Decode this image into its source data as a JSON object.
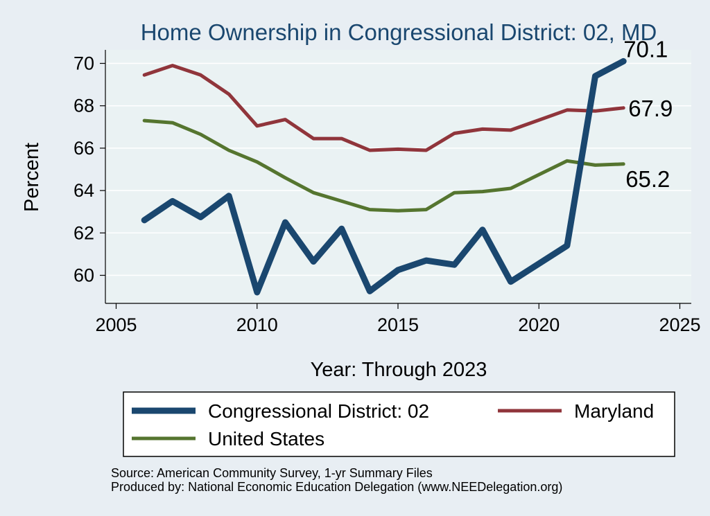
{
  "chart_data": {
    "type": "line",
    "title": "Home Ownership in Congressional District:  02, MD",
    "xlabel": "Year: Through 2023",
    "ylabel": "Percent",
    "xlim": [
      2005,
      2025
    ],
    "ylim": [
      59,
      71
    ],
    "xticks": [
      2005,
      2010,
      2015,
      2020,
      2025
    ],
    "yticks": [
      60,
      62,
      64,
      66,
      68,
      70
    ],
    "x": [
      2006,
      2007,
      2008,
      2009,
      2010,
      2011,
      2012,
      2013,
      2014,
      2015,
      2016,
      2017,
      2018,
      2019,
      2021,
      2022,
      2023
    ],
    "series": [
      {
        "name": "Congressional District:  02",
        "color": "#1a476f",
        "values": [
          62.6,
          63.5,
          62.75,
          63.75,
          59.2,
          62.5,
          60.65,
          62.2,
          59.25,
          60.25,
          60.7,
          60.5,
          62.15,
          59.7,
          61.4,
          69.4,
          70.1
        ],
        "end_label": "70.1"
      },
      {
        "name": "Maryland",
        "color": "#90353b",
        "values": [
          69.45,
          69.9,
          69.45,
          68.55,
          67.05,
          67.35,
          66.45,
          66.45,
          65.9,
          65.95,
          65.9,
          66.7,
          66.9,
          66.85,
          67.8,
          67.75,
          67.9
        ],
        "end_label": "67.9"
      },
      {
        "name": "United States",
        "color": "#55752f",
        "values": [
          67.3,
          67.2,
          66.65,
          65.9,
          65.35,
          64.6,
          63.9,
          63.5,
          63.1,
          63.05,
          63.1,
          63.9,
          63.95,
          64.1,
          65.4,
          65.2,
          65.25
        ],
        "end_label": "65.2"
      }
    ],
    "legend": {
      "position": "bottom"
    },
    "notes": [
      "Source: American Community Survey, 1-yr Summary Files",
      "Produced by: National Economic Education Delegation (www.NEEDelegation.org)"
    ]
  }
}
